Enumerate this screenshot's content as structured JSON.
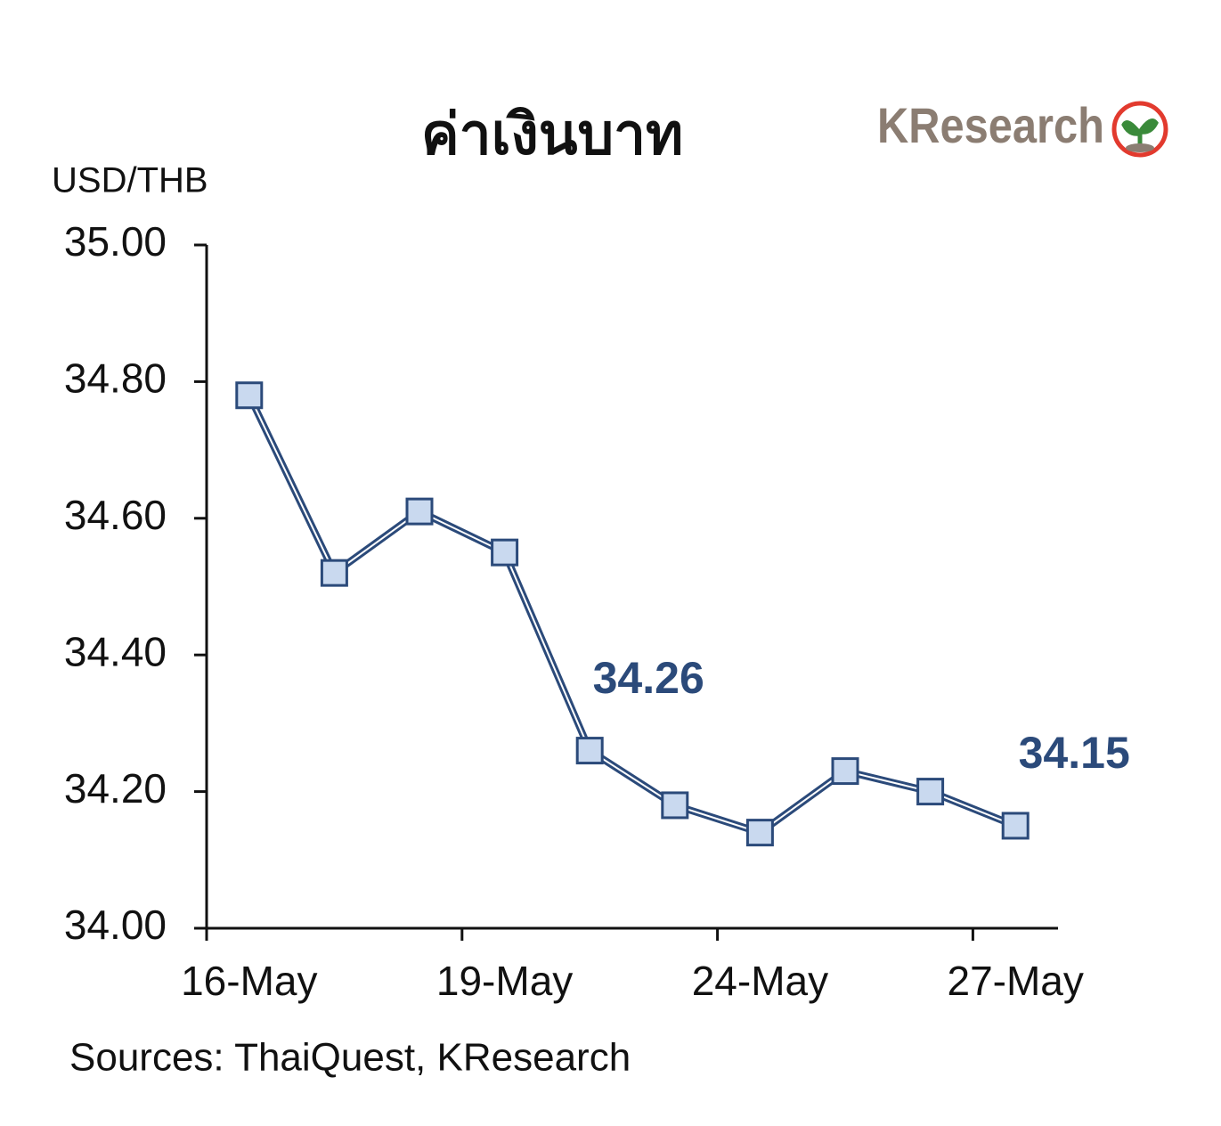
{
  "logo": "KResearch",
  "chart_data": {
    "type": "line",
    "title": "ค่าเงินบาท",
    "y_label": "USD/THB",
    "source": "Sources: ThaiQuest, KResearch",
    "categories": [
      "16-May",
      null,
      null,
      "19-May",
      null,
      null,
      "24-May",
      null,
      null,
      "27-May"
    ],
    "series": [
      {
        "name": "USD/THB",
        "color": "#2b4a7a",
        "marker_color": "#c9d9ef",
        "values": [
          34.78,
          34.52,
          34.61,
          34.55,
          34.26,
          34.18,
          34.14,
          34.23,
          34.2,
          34.15
        ],
        "value_labels": [
          null,
          null,
          null,
          null,
          "34.26",
          null,
          null,
          null,
          null,
          "34.15"
        ]
      }
    ],
    "ylim": [
      34,
      35
    ],
    "yticks": [
      {
        "value": 34,
        "label": "34.00"
      },
      {
        "value": 34.2,
        "label": "34.20"
      },
      {
        "value": 34.4,
        "label": "34.40"
      },
      {
        "value": 34.6,
        "label": "34.60"
      },
      {
        "value": 34.8,
        "label": "34.80"
      },
      {
        "value": 35,
        "label": "35.00"
      }
    ],
    "grid": false
  }
}
